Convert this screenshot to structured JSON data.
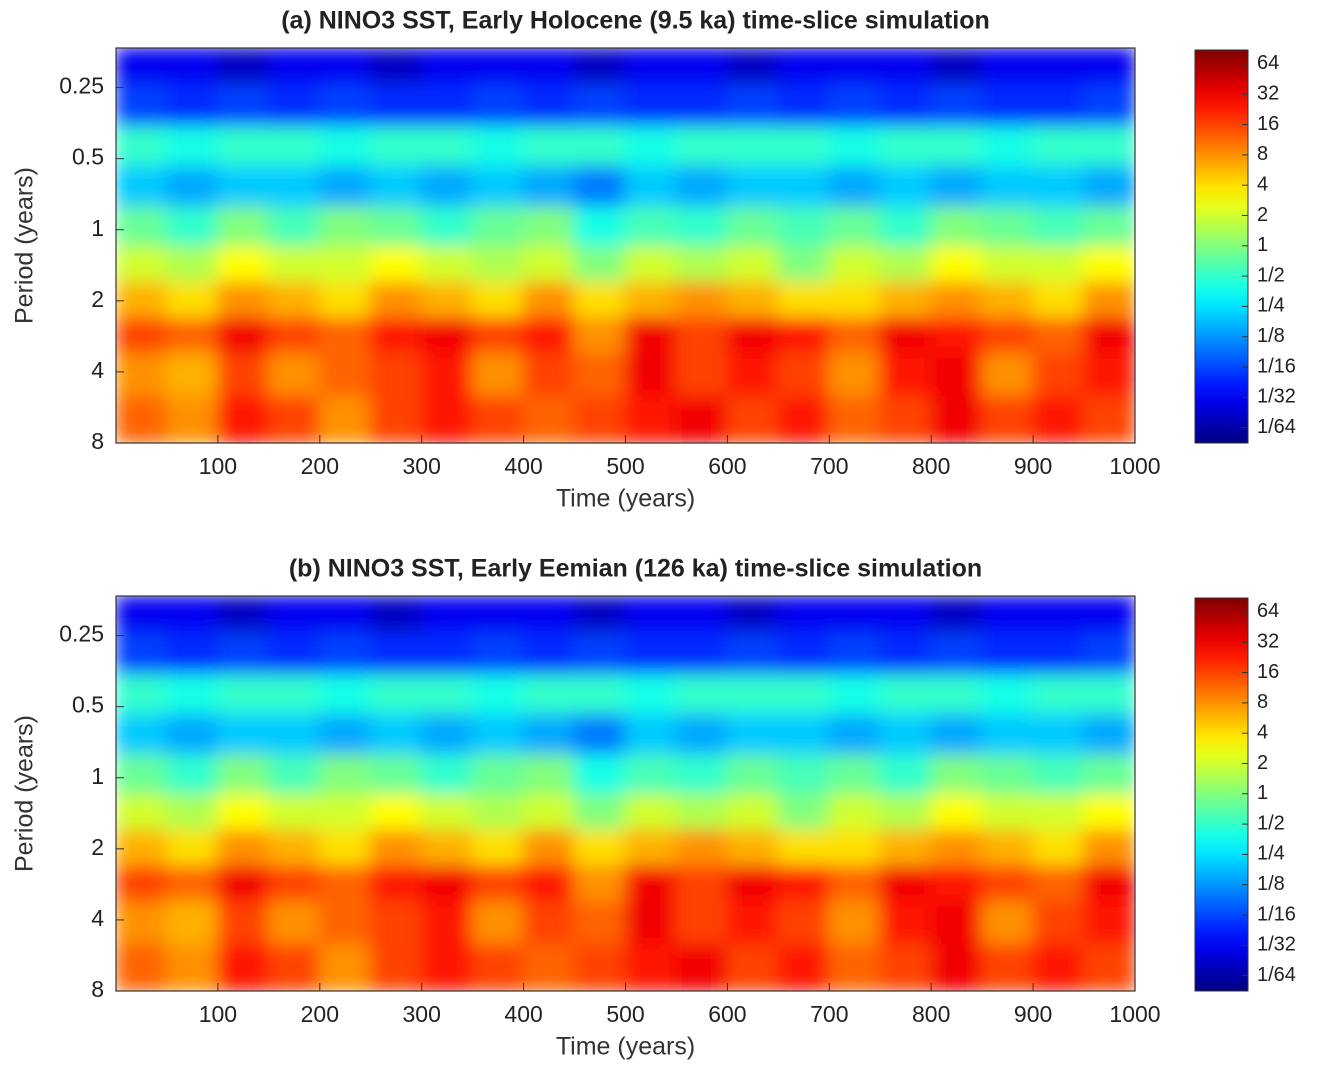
{
  "chart_data": [
    {
      "type": "heatmap",
      "title": "(a) NINO3 SST, Early Holocene (9.5 ka) time-slice simulation",
      "xlabel": "Time (years)",
      "ylabel": "Period (years)",
      "x": [
        25,
        75,
        125,
        175,
        225,
        275,
        325,
        375,
        425,
        475,
        525,
        575,
        625,
        675,
        725,
        775,
        825,
        875,
        925,
        975
      ],
      "y": [
        0.2,
        0.3,
        0.45,
        0.65,
        1,
        1.4,
        2,
        2.8,
        4,
        6.5
      ],
      "values": [
        [
          0.03,
          0.03,
          0.02,
          0.03,
          0.03,
          0.02,
          0.03,
          0.03,
          0.03,
          0.02,
          0.03,
          0.03,
          0.02,
          0.03,
          0.03,
          0.03,
          0.02,
          0.03,
          0.03,
          0.03
        ],
        [
          0.06,
          0.05,
          0.06,
          0.05,
          0.06,
          0.05,
          0.05,
          0.06,
          0.05,
          0.06,
          0.05,
          0.05,
          0.06,
          0.05,
          0.06,
          0.05,
          0.06,
          0.05,
          0.05,
          0.06
        ],
        [
          0.5,
          0.4,
          0.5,
          0.5,
          0.4,
          0.5,
          0.5,
          0.4,
          0.5,
          0.5,
          0.4,
          0.5,
          0.5,
          0.5,
          0.4,
          0.5,
          0.5,
          0.4,
          0.5,
          0.5
        ],
        [
          0.2,
          0.15,
          0.2,
          0.2,
          0.15,
          0.2,
          0.15,
          0.2,
          0.15,
          0.1,
          0.2,
          0.15,
          0.2,
          0.2,
          0.15,
          0.2,
          0.15,
          0.2,
          0.2,
          0.15
        ],
        [
          0.8,
          0.5,
          1,
          0.6,
          1,
          0.8,
          0.5,
          0.8,
          1,
          0.4,
          0.6,
          0.5,
          0.8,
          0.6,
          0.8,
          0.5,
          1,
          0.8,
          0.6,
          0.8
        ],
        [
          2,
          1.5,
          3,
          2,
          2,
          3,
          2,
          1.5,
          2,
          1,
          2,
          1.5,
          2,
          1,
          2,
          1.5,
          3,
          2,
          2,
          3
        ],
        [
          6,
          4,
          8,
          6,
          4,
          8,
          6,
          4,
          8,
          4,
          6,
          8,
          6,
          4,
          4,
          6,
          8,
          6,
          4,
          8
        ],
        [
          16,
          12,
          32,
          16,
          12,
          24,
          32,
          16,
          24,
          8,
          32,
          16,
          32,
          24,
          12,
          32,
          24,
          16,
          12,
          32
        ],
        [
          8,
          6,
          16,
          8,
          12,
          16,
          24,
          8,
          16,
          12,
          32,
          16,
          24,
          16,
          8,
          24,
          32,
          8,
          16,
          24
        ],
        [
          12,
          8,
          24,
          16,
          8,
          16,
          24,
          16,
          12,
          16,
          24,
          32,
          16,
          24,
          12,
          16,
          32,
          16,
          24,
          16
        ]
      ],
      "xlim": [
        0,
        1000
      ],
      "xticks": [
        100,
        200,
        300,
        400,
        500,
        600,
        700,
        800,
        900,
        1000
      ],
      "ylim": [
        0.17,
        8
      ],
      "yticks": [
        0.25,
        0.5,
        1,
        2,
        4,
        8
      ],
      "ylog": true,
      "yreverse": true,
      "colormap": "jet",
      "clog": true,
      "clim": [
        0.011,
        88
      ],
      "cticks": [
        64,
        32,
        16,
        8,
        4,
        2,
        1,
        {
          "value": 0.5,
          "label": "1/2"
        },
        {
          "value": 0.25,
          "label": "1/4"
        },
        {
          "value": 0.125,
          "label": "1/8"
        },
        {
          "value": 0.0625,
          "label": "1/16"
        },
        {
          "value": 0.03125,
          "label": "1/32"
        },
        {
          "value": 0.015625,
          "label": "1/64"
        }
      ]
    },
    {
      "type": "heatmap",
      "title": "(b) NINO3 SST, Early Eemian (126 ka) time-slice simulation",
      "xlabel": "Time (years)",
      "ylabel": "Period (years)",
      "x": [
        25,
        75,
        125,
        175,
        225,
        275,
        325,
        375,
        425,
        475,
        525,
        575,
        625,
        675,
        725,
        775,
        825,
        875,
        925,
        975
      ],
      "y": [
        0.2,
        0.3,
        0.45,
        0.65,
        1,
        1.4,
        2,
        2.8,
        4,
        6.5
      ],
      "values": [
        [
          0.03,
          0.03,
          0.02,
          0.03,
          0.03,
          0.02,
          0.03,
          0.03,
          0.03,
          0.02,
          0.03,
          0.03,
          0.02,
          0.03,
          0.03,
          0.03,
          0.02,
          0.03,
          0.03,
          0.03
        ],
        [
          0.06,
          0.05,
          0.06,
          0.05,
          0.06,
          0.05,
          0.05,
          0.06,
          0.05,
          0.06,
          0.05,
          0.05,
          0.06,
          0.05,
          0.06,
          0.05,
          0.06,
          0.05,
          0.05,
          0.06
        ],
        [
          0.5,
          0.4,
          0.5,
          0.5,
          0.4,
          0.5,
          0.5,
          0.4,
          0.5,
          0.5,
          0.4,
          0.5,
          0.5,
          0.5,
          0.4,
          0.5,
          0.5,
          0.4,
          0.5,
          0.5
        ],
        [
          0.2,
          0.15,
          0.2,
          0.2,
          0.15,
          0.2,
          0.15,
          0.2,
          0.15,
          0.1,
          0.2,
          0.15,
          0.2,
          0.2,
          0.15,
          0.2,
          0.15,
          0.2,
          0.2,
          0.15
        ],
        [
          0.8,
          0.5,
          1,
          0.6,
          1,
          0.8,
          0.5,
          0.8,
          1,
          0.4,
          0.6,
          0.5,
          0.8,
          0.6,
          0.8,
          0.5,
          1,
          0.8,
          0.6,
          0.8
        ],
        [
          2,
          1.5,
          3,
          2,
          2,
          3,
          2,
          1.5,
          2,
          1,
          2,
          1.5,
          2,
          1,
          2,
          1.5,
          3,
          2,
          2,
          3
        ],
        [
          6,
          4,
          8,
          6,
          4,
          8,
          6,
          4,
          8,
          4,
          6,
          8,
          6,
          4,
          4,
          6,
          8,
          6,
          4,
          8
        ],
        [
          16,
          12,
          32,
          16,
          12,
          24,
          32,
          16,
          24,
          8,
          32,
          16,
          32,
          24,
          12,
          32,
          24,
          16,
          12,
          32
        ],
        [
          8,
          6,
          16,
          8,
          12,
          16,
          24,
          8,
          16,
          12,
          32,
          16,
          24,
          16,
          8,
          24,
          32,
          8,
          16,
          24
        ],
        [
          12,
          8,
          24,
          16,
          8,
          16,
          24,
          16,
          12,
          16,
          24,
          32,
          16,
          24,
          12,
          16,
          32,
          16,
          24,
          16
        ]
      ],
      "xlim": [
        0,
        1000
      ],
      "xticks": [
        100,
        200,
        300,
        400,
        500,
        600,
        700,
        800,
        900,
        1000
      ],
      "ylim": [
        0.17,
        8
      ],
      "yticks": [
        0.25,
        0.5,
        1,
        2,
        4,
        8
      ],
      "ylog": true,
      "yreverse": true,
      "colormap": "jet",
      "clog": true,
      "clim": [
        0.011,
        88
      ],
      "cticks": [
        64,
        32,
        16,
        8,
        4,
        2,
        1,
        {
          "value": 0.5,
          "label": "1/2"
        },
        {
          "value": 0.25,
          "label": "1/4"
        },
        {
          "value": 0.125,
          "label": "1/8"
        },
        {
          "value": 0.0625,
          "label": "1/16"
        },
        {
          "value": 0.03125,
          "label": "1/32"
        },
        {
          "value": 0.015625,
          "label": "1/64"
        }
      ]
    }
  ]
}
